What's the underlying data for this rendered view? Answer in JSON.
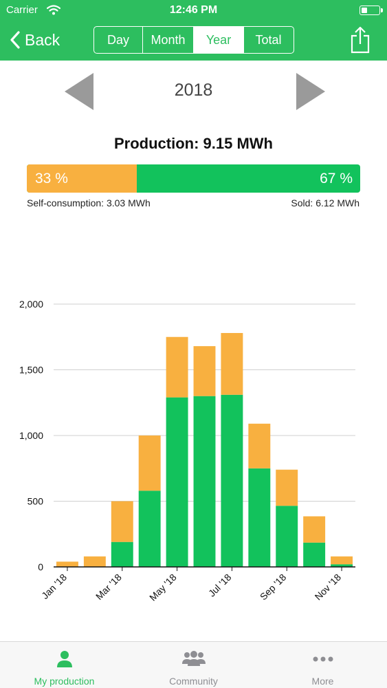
{
  "status_bar": {
    "carrier": "Carrier",
    "time": "12:46 PM"
  },
  "nav": {
    "back_label": "Back",
    "segments": [
      "Day",
      "Month",
      "Year",
      "Total"
    ],
    "active_segment": "Year"
  },
  "period": {
    "year": "2018"
  },
  "production": {
    "title": "Production: 9.15 MWh",
    "self_consumption_fraction": 0.33,
    "self_pct_label": "33 %",
    "sold_pct_label": "67 %",
    "self_consumption_label": "Self-consumption: 3.03 MWh",
    "sold_label": "Sold: 6.12 MWh"
  },
  "colors": {
    "brand_green": "#2dbe5f",
    "sold_green": "#12c25c",
    "self_orange": "#f8b040"
  },
  "chart_data": {
    "type": "bar",
    "stacked": true,
    "categories": [
      "Jan '18",
      "Feb '18",
      "Mar '18",
      "Apr '18",
      "May '18",
      "Jun '18",
      "Jul '18",
      "Aug '18",
      "Sep '18",
      "Oct '18",
      "Nov '18"
    ],
    "tick_labels": [
      "Jan '18",
      "",
      "Mar '18",
      "",
      "May '18",
      "",
      "Jul '18",
      "",
      "Sep '18",
      "",
      "Nov '18"
    ],
    "series": [
      {
        "values": [
          0,
          0,
          190,
          580,
          1290,
          1300,
          1310,
          750,
          465,
          185,
          20
        ],
        "color": "#12c25c"
      },
      {
        "values": [
          40,
          80,
          310,
          420,
          460,
          380,
          470,
          340,
          275,
          200,
          60
        ],
        "color": "#f8b040"
      }
    ],
    "ylim": [
      0,
      2000
    ],
    "yticks": [
      0,
      500,
      1000,
      1500,
      2000
    ],
    "ytick_labels": [
      "0",
      "500",
      "1,000",
      "1,500",
      "2,000"
    ],
    "grid": true
  },
  "tabs": [
    {
      "label": "My production",
      "icon": "person-icon",
      "active": true
    },
    {
      "label": "Community",
      "icon": "group-icon",
      "active": false
    },
    {
      "label": "More",
      "icon": "more-dots-icon",
      "active": false
    }
  ]
}
